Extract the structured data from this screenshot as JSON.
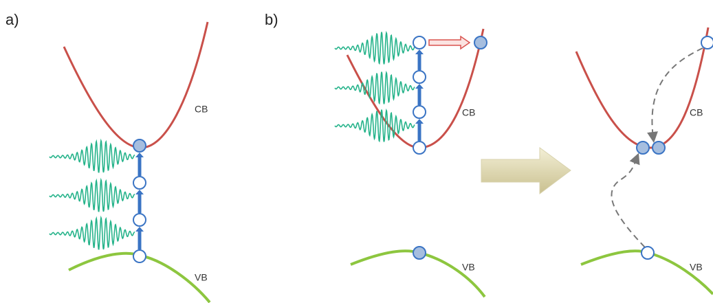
{
  "panel_a": {
    "label": "a)",
    "bands": [
      "CB",
      "VB"
    ]
  },
  "panel_b": {
    "label": "b)",
    "before": {
      "bands": [
        "CB",
        "VB"
      ]
    },
    "after": {
      "bands": [
        "CB",
        "VB"
      ]
    }
  }
}
